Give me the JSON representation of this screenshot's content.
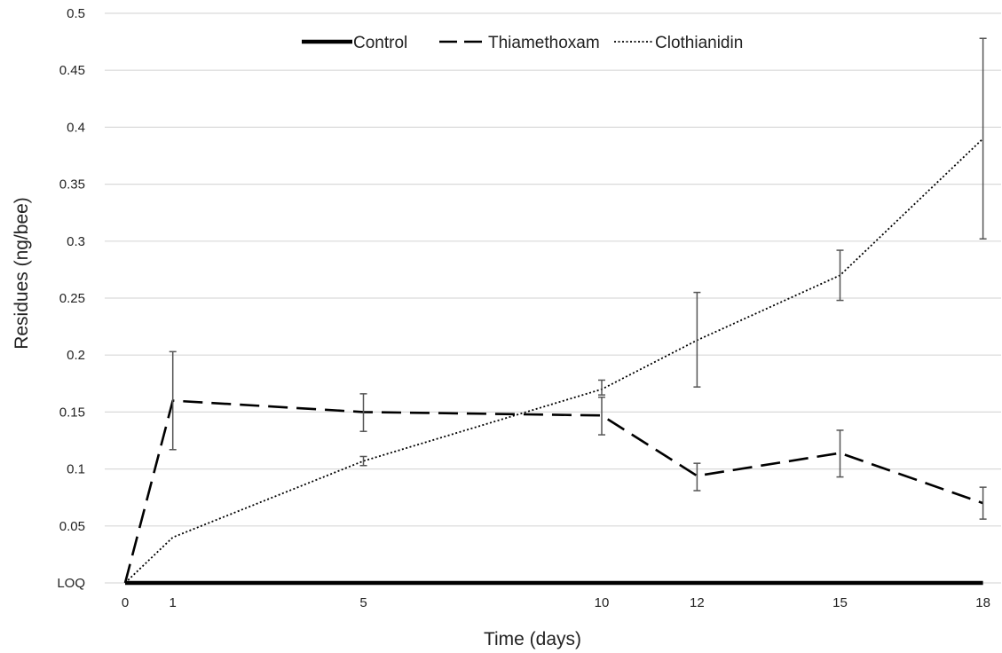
{
  "chart_data": {
    "type": "line",
    "xlabel": "Time (days)",
    "ylabel": "Residues  (ng/bee)",
    "x": [
      0,
      1,
      5,
      10,
      12,
      15,
      18
    ],
    "x_tick_labels": [
      "0",
      "1",
      "5",
      "10",
      "12",
      "15",
      "18"
    ],
    "ylim": [
      0,
      0.5
    ],
    "y_ticks": [
      0,
      0.05,
      0.1,
      0.15,
      0.2,
      0.25,
      0.3,
      0.35,
      0.4,
      0.45,
      0.5
    ],
    "y_tick_labels": [
      "LOQ",
      "0.05",
      "0.1",
      "0.15",
      "0.2",
      "0.25",
      "0.3",
      "0.35",
      "0.4",
      "0.45",
      "0.5"
    ],
    "grid": "horizontal",
    "legend_position": "top-center",
    "series": [
      {
        "name": "Control",
        "style": "solid",
        "color": "#000000",
        "values": [
          0,
          0,
          0,
          0,
          0,
          0,
          0
        ],
        "errors": null
      },
      {
        "name": "Thiamethoxam",
        "style": "dashed",
        "color": "#000000",
        "values": [
          0,
          0.16,
          0.15,
          0.147,
          0.094,
          0.114,
          0.07
        ],
        "errors": [
          null,
          [
            0.117,
            0.203
          ],
          [
            0.133,
            0.166
          ],
          [
            0.13,
            0.163
          ],
          [
            0.081,
            0.105
          ],
          [
            0.093,
            0.134
          ],
          [
            0.056,
            0.084
          ]
        ]
      },
      {
        "name": "Clothianidin",
        "style": "dotted",
        "color": "#000000",
        "values": [
          0,
          0.04,
          0.107,
          0.17,
          0.213,
          0.27,
          0.39
        ],
        "errors": [
          null,
          null,
          [
            0.103,
            0.111
          ],
          [
            0.165,
            0.178
          ],
          [
            0.172,
            0.255
          ],
          [
            0.248,
            0.292
          ],
          [
            0.302,
            0.478
          ]
        ]
      }
    ]
  }
}
